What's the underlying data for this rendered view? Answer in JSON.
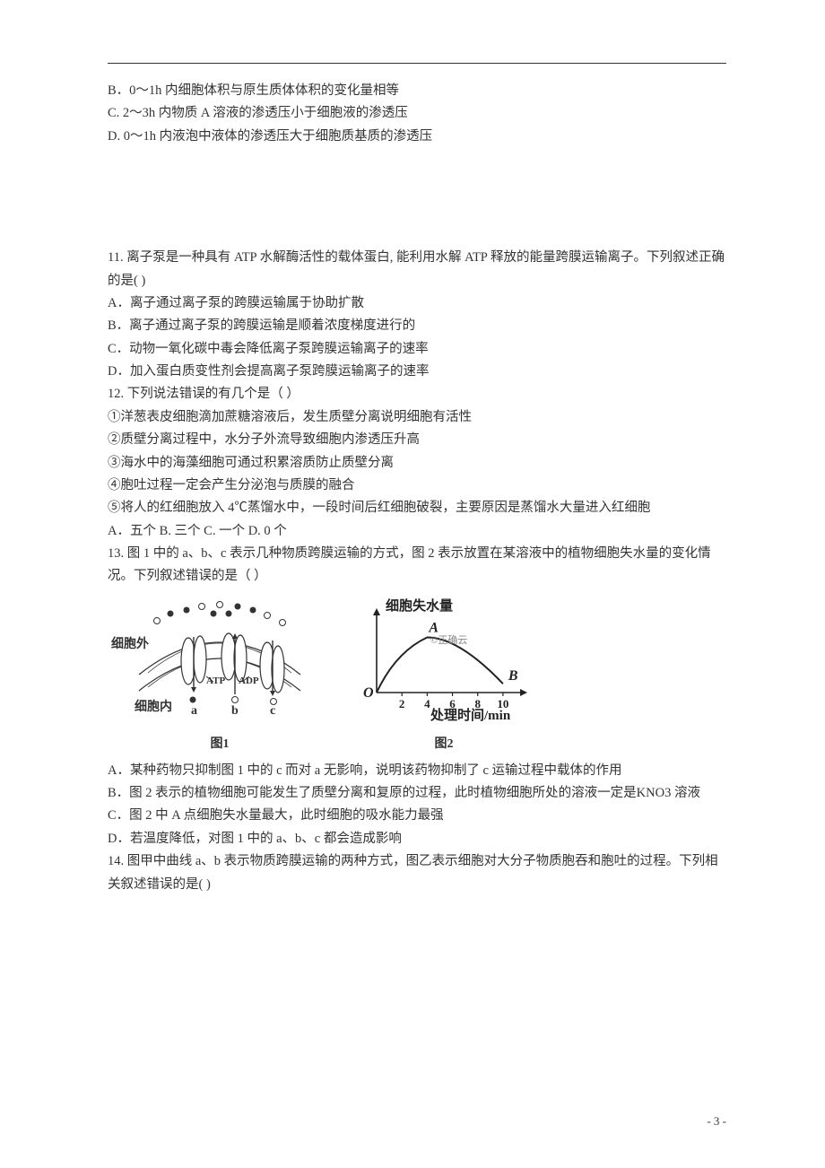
{
  "topBlock": {
    "b": "B．0～1h 内细胞体积与原生质体体积的变化量相等",
    "c": "C. 2～3h 内物质 A 溶液的渗透压小于细胞液的渗透压",
    "d": "D. 0～1h 内液泡中液体的渗透压大于细胞质基质的渗透压"
  },
  "q11": {
    "stem": "11. 离子泵是一种具有 ATP 水解酶活性的载体蛋白, 能利用水解 ATP 释放的能量跨膜运输离子。下列叙述正确的是(    )",
    "a": "A．离子通过离子泵的跨膜运输属于协助扩散",
    "b": "B．离子通过离子泵的跨膜运输是顺着浓度梯度进行的",
    "c": "C．动物一氧化碳中毒会降低离子泵跨膜运输离子的速率",
    "d": "D．加入蛋白质变性剂会提高离子泵跨膜运输离子的速率"
  },
  "q12": {
    "stem": "12. 下列说法错误的有几个是（   ）",
    "s1": "①洋葱表皮细胞滴加蔗糖溶液后，发生质壁分离说明细胞有活性",
    "s2": "②质壁分离过程中，水分子外流导致细胞内渗透压升高",
    "s3": "③海水中的海藻细胞可通过积累溶质防止质壁分离",
    "s4": "④胞吐过程一定会产生分泌泡与质膜的融合",
    "s5": "⑤将人的红细胞放入 4℃蒸馏水中，一段时间后红细胞破裂，主要原因是蒸馏水大量进入红细胞",
    "opts": "A．五个      B. 三个      C. 一个      D. 0 个"
  },
  "q13": {
    "stem": "13. 图 1 中的 a、b、c 表示几种物质跨膜运输的方式，图 2 表示放置在某溶液中的植物细胞失水量的变化情况。下列叙述错误的是（   ）",
    "a": "A．某种药物只抑制图 1 中的 c 而对 a 无影响，说明该药物抑制了 c 运输过程中载体的作用",
    "b": "B．图 2 表示的植物细胞可能发生了质壁分离和复原的过程，此时植物细胞所处的溶液一定是KNO3 溶液",
    "c": "C．图 2 中 A 点细胞失水量最大，此时细胞的吸水能力最强",
    "d": "D．若温度降低，对图 1 中的 a、b、c 都会造成影响"
  },
  "q14": {
    "stem": "14. 图甲中曲线 a、b 表示物质跨膜运输的两种方式，图乙表示细胞对大分子物质胞吞和胞吐的过程。下列相关叙述错误的是(    )"
  },
  "fig1": {
    "caption": "图1",
    "labels": {
      "outside": "细胞外",
      "inside": "细胞内",
      "a": "a",
      "b": "b",
      "c": "c",
      "atp": "ATP",
      "adp": "ADP"
    },
    "colors": {
      "stroke": "#333333",
      "fill_channel": "#ffffff",
      "ball_fill": "#333333",
      "ball_open": "#ffffff"
    }
  },
  "fig2": {
    "caption": "图2",
    "labels": {
      "ylabel": "细胞失水量",
      "xlabel": "处理时间/min",
      "origin": "O",
      "A": "A",
      "B": "B",
      "wm": "©正确云"
    },
    "xticks": [
      "2",
      "4",
      "6",
      "8",
      "10"
    ],
    "colors": {
      "axis": "#222222",
      "curve": "#222222",
      "text": "#222222",
      "wm": "#888888"
    },
    "curve": {
      "A_x": 4,
      "A_y": 0.75,
      "B_x": 10,
      "B_y": 0.12
    }
  },
  "pageNumber": "- 3 -"
}
